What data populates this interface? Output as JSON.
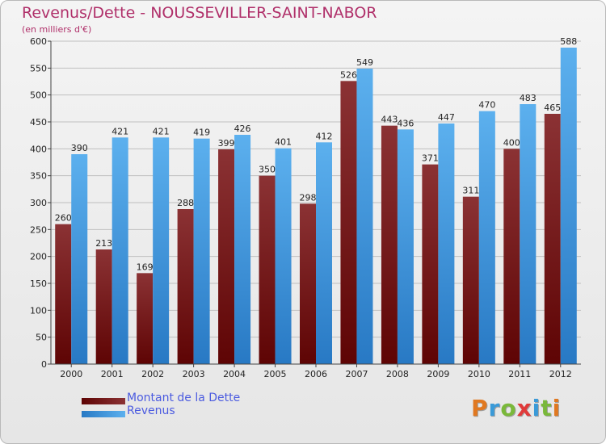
{
  "title": "Revenus/Dette - NOUSSEVILLER-SAINT-NABOR",
  "subtitle": "(en milliers d'€)",
  "legend": [
    {
      "label": "Montant de la Dette"
    },
    {
      "label": "Revenus"
    }
  ],
  "logo": {
    "text": "Proxiti",
    "letter_colors": [
      "#e07820",
      "#3a9ad8",
      "#7ab83a",
      "#e03a3a",
      "#3a9ad8",
      "#7ab83a",
      "#e07820"
    ]
  },
  "colors": {
    "dette_top": "#8b3234",
    "dette_bottom": "#5e0404",
    "revenus_top": "#5cb0ee",
    "revenus_bottom": "#2879c4",
    "grid": "#bfbfbf"
  },
  "chart_data": {
    "type": "bar",
    "categories": [
      "2000",
      "2001",
      "2002",
      "2003",
      "2004",
      "2005",
      "2006",
      "2007",
      "2008",
      "2009",
      "2010",
      "2011",
      "2012"
    ],
    "series": [
      {
        "name": "Montant de la Dette",
        "values": [
          260,
          213,
          169,
          288,
          399,
          350,
          298,
          526,
          443,
          371,
          311,
          400,
          465
        ]
      },
      {
        "name": "Revenus",
        "values": [
          390,
          421,
          421,
          419,
          426,
          401,
          412,
          549,
          436,
          447,
          470,
          483,
          588
        ]
      }
    ],
    "ylim": [
      0,
      600
    ],
    "yticks": [
      0,
      50,
      100,
      150,
      200,
      250,
      300,
      350,
      400,
      450,
      500,
      550,
      600
    ],
    "grid": true,
    "legend_position": "bottom-left"
  }
}
